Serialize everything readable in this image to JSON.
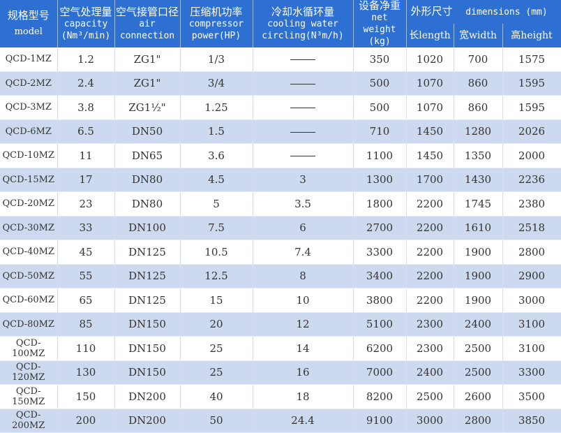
{
  "header": {
    "model_zh": "规格型号",
    "model_en": "model",
    "capacity_zh": "空气处理量",
    "capacity_en1": "capacity",
    "capacity_en2": "(Nm³/min)",
    "air_zh": "空气接管口径",
    "air_en1": "air",
    "air_en2": "connection",
    "comp_zh": "压缩机功率",
    "comp_en1": "compressor",
    "comp_en2": "power(HP)",
    "cool_zh": "冷却水循环量",
    "cool_en1": "cooling water",
    "cool_en2": "circling(N³m/h)",
    "weight_zh": "设备净重",
    "weight_en1": "net",
    "weight_en2": "weight (kg)",
    "dims_zh": "外形尺寸",
    "dims_en": "dimensions (mm)",
    "length": "长length",
    "width": "宽width",
    "height": "高height"
  },
  "rows": [
    [
      "QCD-1MZ",
      "1.2",
      "ZG1\"",
      "1/3",
      "",
      "350",
      "1020",
      "700",
      "1575"
    ],
    [
      "QCD-2MZ",
      "2.4",
      "ZG1\"",
      "3/4",
      "",
      "500",
      "1070",
      "860",
      "1595"
    ],
    [
      "QCD-3MZ",
      "3.8",
      "ZG1½\"",
      "1.25",
      "",
      "500",
      "1070",
      "860",
      "1595"
    ],
    [
      "QCD-6MZ",
      "6.5",
      "DN50",
      "1.5",
      "",
      "710",
      "1450",
      "1280",
      "2026"
    ],
    [
      "QCD-10MZ",
      "11",
      "DN65",
      "3.6",
      "",
      "1100",
      "1450",
      "1350",
      "2000"
    ],
    [
      "QCD-15MZ",
      "17",
      "DN80",
      "4.5",
      "3",
      "1300",
      "1700",
      "1430",
      "2236"
    ],
    [
      "QCD-20MZ",
      "23",
      "DN80",
      "5",
      "3.5",
      "1800",
      "2200",
      "1745",
      "2380"
    ],
    [
      "QCD-30MZ",
      "33",
      "DN100",
      "7.5",
      "6",
      "2700",
      "2200",
      "1610",
      "2518"
    ],
    [
      "QCD-40MZ",
      "45",
      "DN125",
      "10.5",
      "7.4",
      "3300",
      "2200",
      "1900",
      "2800"
    ],
    [
      "QCD-50MZ",
      "55",
      "DN125",
      "12.5",
      "8",
      "3400",
      "2200",
      "1900",
      "2900"
    ],
    [
      "QCD-60MZ",
      "65",
      "DN125",
      "15",
      "10",
      "3800",
      "2200",
      "1900",
      "3000"
    ],
    [
      "QCD-80MZ",
      "85",
      "DN150",
      "20",
      "12",
      "5100",
      "2300",
      "2400",
      "3100"
    ],
    [
      "QCD-100MZ",
      "110",
      "DN150",
      "25",
      "14",
      "6200",
      "2300",
      "2500",
      "3100"
    ],
    [
      "QCD-120MZ",
      "130",
      "DN150",
      "25",
      "16",
      "7000",
      "2400",
      "2500",
      "3300"
    ],
    [
      "QCD-150MZ",
      "150",
      "DN200",
      "40",
      "18",
      "8200",
      "2500",
      "2600",
      "3500"
    ],
    [
      "QCD-200MZ",
      "200",
      "DN200",
      "50",
      "24.4",
      "9100",
      "3000",
      "2800",
      "3850"
    ]
  ]
}
